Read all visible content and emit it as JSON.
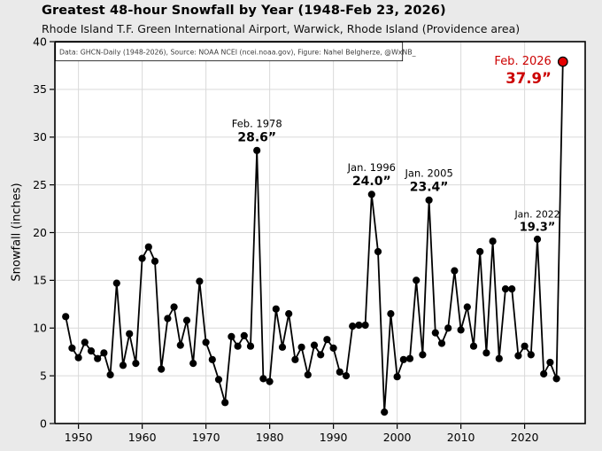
{
  "header": {
    "title": "Greatest 48-hour Snowfall by Year (1948-Feb 23, 2026)",
    "subtitle": "Rhode Island T.F. Green International Airport, Warwick, Rhode Island (Providence area)"
  },
  "footnote": "Data: GHCN-Daily (1948-2026), Source: NOAA NCEI (ncei.noaa.gov), Figure: Nahel Belgherze, @WxNB_",
  "colors": {
    "outer_background": "#eaeaea",
    "plot_background": "#ffffff",
    "grid": "#d9d9d9",
    "line": "#000000",
    "marker": "#000000",
    "highlight_marker": "#e40000",
    "highlight_text": "#cc0000",
    "border": "#000000"
  },
  "chart_data": {
    "type": "line",
    "title": "Greatest 48-hour Snowfall by Year (1948-Feb 23, 2026)",
    "subtitle": "Rhode Island T.F. Green International Airport, Warwick, Rhode Island (Providence area)",
    "xlabel": "",
    "ylabel": "Snowfall (inches)",
    "grid": true,
    "marker": "circle",
    "ylim": [
      0,
      40
    ],
    "xlim": [
      1946.3,
      2029.5
    ],
    "yticks": [
      0,
      5,
      10,
      15,
      20,
      25,
      30,
      35,
      40
    ],
    "xticks": [
      1950,
      1960,
      1970,
      1980,
      1990,
      2000,
      2010,
      2020
    ],
    "x": [
      1948,
      1949,
      1950,
      1951,
      1952,
      1953,
      1954,
      1955,
      1956,
      1957,
      1958,
      1959,
      1960,
      1961,
      1962,
      1963,
      1964,
      1965,
      1966,
      1967,
      1968,
      1969,
      1970,
      1971,
      1972,
      1973,
      1974,
      1975,
      1976,
      1977,
      1978,
      1979,
      1980,
      1981,
      1982,
      1983,
      1984,
      1985,
      1986,
      1987,
      1988,
      1989,
      1990,
      1991,
      1992,
      1993,
      1994,
      1995,
      1996,
      1997,
      1998,
      1999,
      2000,
      2001,
      2002,
      2003,
      2004,
      2005,
      2006,
      2007,
      2008,
      2009,
      2010,
      2011,
      2012,
      2013,
      2014,
      2015,
      2016,
      2017,
      2018,
      2019,
      2020,
      2021,
      2022,
      2023,
      2024,
      2025,
      2026
    ],
    "values": [
      11.2,
      7.9,
      6.9,
      8.5,
      7.6,
      6.8,
      7.4,
      5.1,
      14.7,
      6.1,
      9.4,
      6.3,
      17.3,
      18.5,
      17.0,
      5.7,
      11.0,
      12.2,
      8.2,
      10.8,
      6.3,
      14.9,
      8.5,
      6.7,
      4.6,
      2.2,
      9.1,
      8.1,
      9.2,
      8.1,
      28.6,
      4.7,
      4.4,
      12.0,
      8.0,
      11.5,
      6.7,
      8.0,
      5.1,
      8.2,
      7.2,
      8.8,
      7.9,
      5.4,
      5.0,
      10.2,
      10.3,
      10.3,
      24.0,
      18.0,
      1.2,
      11.5,
      4.9,
      6.7,
      6.8,
      15.0,
      7.2,
      23.4,
      9.5,
      8.4,
      10.0,
      16.0,
      9.8,
      12.2,
      8.1,
      18.0,
      7.4,
      19.1,
      6.8,
      14.1,
      14.1,
      7.1,
      8.1,
      7.2,
      19.3,
      5.2,
      6.4,
      4.7,
      37.9
    ],
    "highlight": {
      "year": 2026,
      "value": 37.9,
      "marker_color": "#e40000"
    },
    "annotations": [
      {
        "year": 1978,
        "value": 28.6,
        "line1": "Feb. 1978",
        "line2": "28.6”",
        "color": "#000000",
        "placement": "above",
        "size": "normal"
      },
      {
        "year": 1996,
        "value": 24.0,
        "line1": "Jan. 1996",
        "line2": "24.0”",
        "color": "#000000",
        "placement": "above",
        "size": "normal"
      },
      {
        "year": 2005,
        "value": 23.4,
        "line1": "Jan. 2005",
        "line2": "23.4”",
        "color": "#000000",
        "placement": "above",
        "size": "normal"
      },
      {
        "year": 2022,
        "value": 19.3,
        "line1": "Jan. 2022",
        "line2": "19.3”",
        "color": "#000000",
        "placement": "above",
        "size": "small"
      },
      {
        "year": 2026,
        "value": 37.9,
        "line1": "Feb. 2026",
        "line2": "37.9”",
        "color": "#cc0000",
        "placement": "left",
        "size": "large"
      }
    ]
  }
}
